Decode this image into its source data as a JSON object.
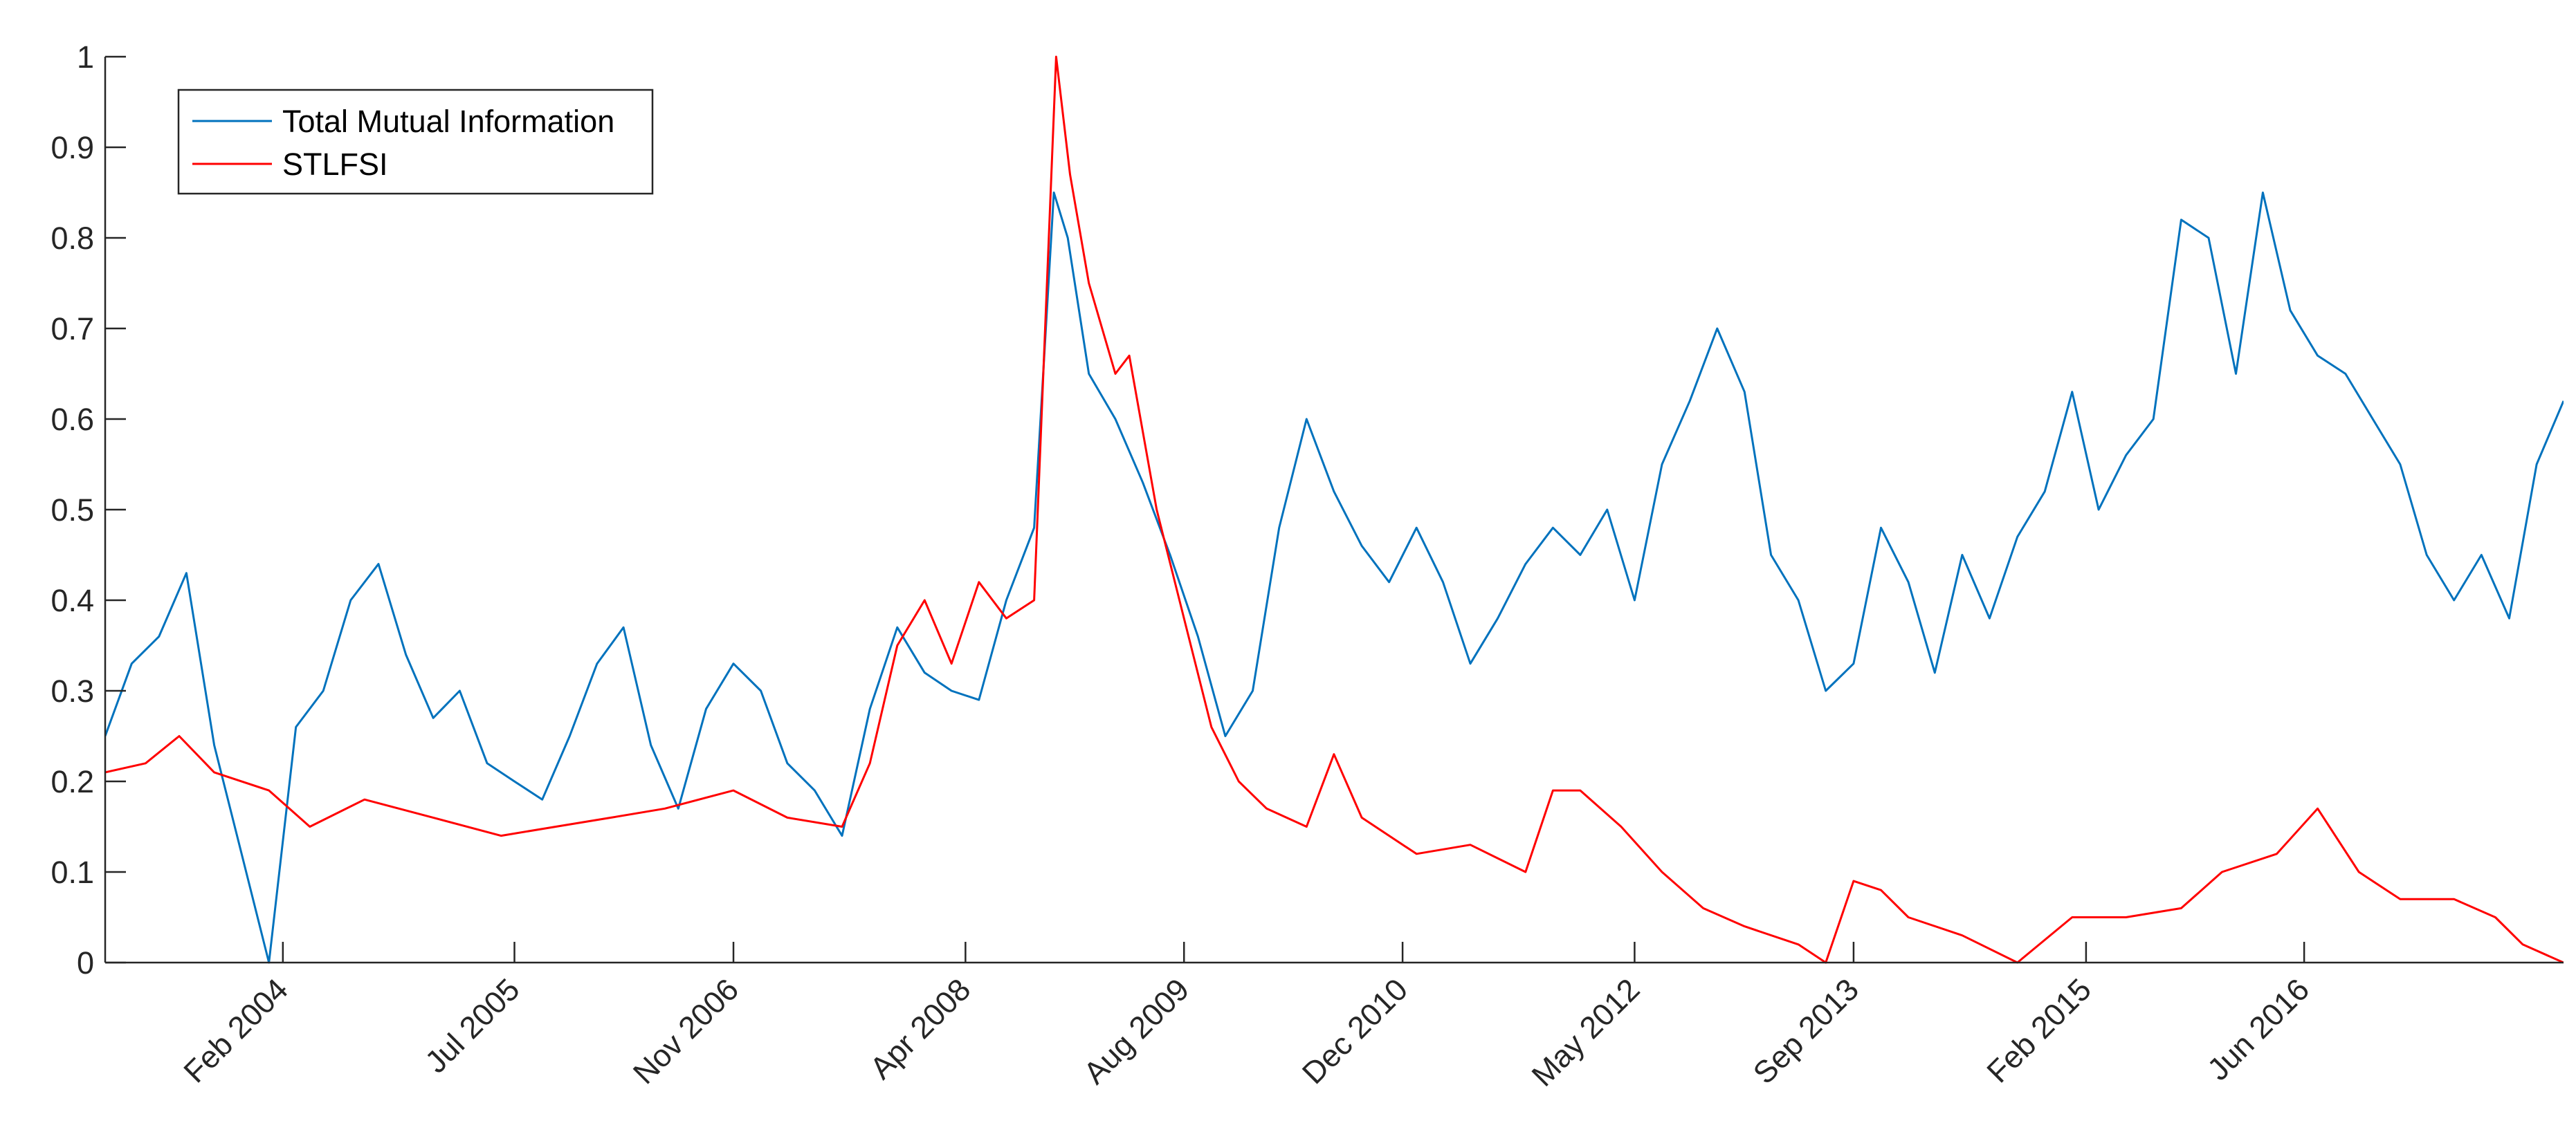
{
  "chart_data": {
    "type": "line",
    "x_axis": {
      "type": "date",
      "range": [
        "2003-01-01",
        "2017-12-31"
      ],
      "tick_dates": [
        "2004-02-01",
        "2005-07-01",
        "2006-11-01",
        "2008-04-01",
        "2009-08-01",
        "2010-12-01",
        "2012-05-01",
        "2013-09-01",
        "2015-02-01",
        "2016-06-01"
      ],
      "tick_labels": [
        "Feb 2004",
        "Jul 2005",
        "Nov 2006",
        "Apr 2008",
        "Aug 2009",
        "Dec 2010",
        "May 2012",
        "Sep 2013",
        "Feb 2015",
        "Jun 2016"
      ]
    },
    "y_axis": {
      "range": [
        0,
        1
      ],
      "ticks": [
        0,
        0.1,
        0.2,
        0.3,
        0.4,
        0.5,
        0.6,
        0.7,
        0.8,
        0.9,
        1
      ],
      "tick_labels": [
        "0",
        "0.1",
        "0.2",
        "0.3",
        "0.4",
        "0.5",
        "0.6",
        "0.7",
        "0.8",
        "0.9",
        "1"
      ]
    },
    "grid": false,
    "legend": {
      "placement": "top-left"
    },
    "series": [
      {
        "name": "Total Mutual Information",
        "color": "#0072BD",
        "points": [
          [
            "2003-01-01",
            0.25
          ],
          [
            "2003-03-01",
            0.33
          ],
          [
            "2003-05-01",
            0.36
          ],
          [
            "2003-07-01",
            0.43
          ],
          [
            "2003-09-01",
            0.24
          ],
          [
            "2003-11-01",
            0.12
          ],
          [
            "2004-01-01",
            0.0
          ],
          [
            "2004-03-01",
            0.26
          ],
          [
            "2004-05-01",
            0.3
          ],
          [
            "2004-07-01",
            0.4
          ],
          [
            "2004-09-01",
            0.44
          ],
          [
            "2004-11-01",
            0.34
          ],
          [
            "2005-01-01",
            0.27
          ],
          [
            "2005-03-01",
            0.3
          ],
          [
            "2005-05-01",
            0.22
          ],
          [
            "2005-07-01",
            0.2
          ],
          [
            "2005-09-01",
            0.18
          ],
          [
            "2005-11-01",
            0.25
          ],
          [
            "2006-01-01",
            0.33
          ],
          [
            "2006-03-01",
            0.37
          ],
          [
            "2006-05-01",
            0.24
          ],
          [
            "2006-07-01",
            0.17
          ],
          [
            "2006-09-01",
            0.28
          ],
          [
            "2006-11-01",
            0.33
          ],
          [
            "2007-01-01",
            0.3
          ],
          [
            "2007-03-01",
            0.22
          ],
          [
            "2007-05-01",
            0.19
          ],
          [
            "2007-07-01",
            0.14
          ],
          [
            "2007-09-01",
            0.28
          ],
          [
            "2007-11-01",
            0.37
          ],
          [
            "2008-01-01",
            0.32
          ],
          [
            "2008-03-01",
            0.3
          ],
          [
            "2008-05-01",
            0.29
          ],
          [
            "2008-07-01",
            0.4
          ],
          [
            "2008-09-01",
            0.48
          ],
          [
            "2008-10-15",
            0.85
          ],
          [
            "2008-11-15",
            0.8
          ],
          [
            "2009-01-01",
            0.65
          ],
          [
            "2009-03-01",
            0.6
          ],
          [
            "2009-05-01",
            0.53
          ],
          [
            "2009-07-01",
            0.45
          ],
          [
            "2009-09-01",
            0.36
          ],
          [
            "2009-11-01",
            0.25
          ],
          [
            "2010-01-01",
            0.3
          ],
          [
            "2010-03-01",
            0.48
          ],
          [
            "2010-05-01",
            0.6
          ],
          [
            "2010-07-01",
            0.52
          ],
          [
            "2010-09-01",
            0.46
          ],
          [
            "2010-11-01",
            0.42
          ],
          [
            "2011-01-01",
            0.48
          ],
          [
            "2011-03-01",
            0.42
          ],
          [
            "2011-05-01",
            0.33
          ],
          [
            "2011-07-01",
            0.38
          ],
          [
            "2011-09-01",
            0.44
          ],
          [
            "2011-11-01",
            0.48
          ],
          [
            "2012-01-01",
            0.45
          ],
          [
            "2012-03-01",
            0.5
          ],
          [
            "2012-05-01",
            0.4
          ],
          [
            "2012-07-01",
            0.55
          ],
          [
            "2012-09-01",
            0.62
          ],
          [
            "2012-11-01",
            0.7
          ],
          [
            "2013-01-01",
            0.63
          ],
          [
            "2013-03-01",
            0.45
          ],
          [
            "2013-05-01",
            0.4
          ],
          [
            "2013-07-01",
            0.3
          ],
          [
            "2013-09-01",
            0.33
          ],
          [
            "2013-11-01",
            0.48
          ],
          [
            "2014-01-01",
            0.42
          ],
          [
            "2014-03-01",
            0.32
          ],
          [
            "2014-05-01",
            0.45
          ],
          [
            "2014-07-01",
            0.38
          ],
          [
            "2014-09-01",
            0.47
          ],
          [
            "2014-11-01",
            0.52
          ],
          [
            "2015-01-01",
            0.63
          ],
          [
            "2015-03-01",
            0.5
          ],
          [
            "2015-05-01",
            0.56
          ],
          [
            "2015-07-01",
            0.6
          ],
          [
            "2015-09-01",
            0.82
          ],
          [
            "2015-11-01",
            0.8
          ],
          [
            "2016-01-01",
            0.65
          ],
          [
            "2016-03-01",
            0.85
          ],
          [
            "2016-05-01",
            0.72
          ],
          [
            "2016-07-01",
            0.67
          ],
          [
            "2016-09-01",
            0.65
          ],
          [
            "2016-11-01",
            0.6
          ],
          [
            "2017-01-01",
            0.55
          ],
          [
            "2017-03-01",
            0.45
          ],
          [
            "2017-05-01",
            0.4
          ],
          [
            "2017-07-01",
            0.45
          ],
          [
            "2017-09-01",
            0.38
          ],
          [
            "2017-11-01",
            0.55
          ],
          [
            "2017-12-31",
            0.62
          ]
        ]
      },
      {
        "name": "STLFSI",
        "color": "#FF0000",
        "points": [
          [
            "2003-01-01",
            0.21
          ],
          [
            "2003-04-01",
            0.22
          ],
          [
            "2003-06-15",
            0.25
          ],
          [
            "2003-09-01",
            0.21
          ],
          [
            "2004-01-01",
            0.19
          ],
          [
            "2004-04-01",
            0.15
          ],
          [
            "2004-08-01",
            0.18
          ],
          [
            "2005-01-01",
            0.16
          ],
          [
            "2005-06-01",
            0.14
          ],
          [
            "2005-10-01",
            0.15
          ],
          [
            "2006-02-01",
            0.16
          ],
          [
            "2006-06-01",
            0.17
          ],
          [
            "2006-11-01",
            0.19
          ],
          [
            "2007-03-01",
            0.16
          ],
          [
            "2007-07-01",
            0.15
          ],
          [
            "2007-09-01",
            0.22
          ],
          [
            "2007-11-01",
            0.35
          ],
          [
            "2008-01-01",
            0.4
          ],
          [
            "2008-03-01",
            0.33
          ],
          [
            "2008-05-01",
            0.42
          ],
          [
            "2008-07-01",
            0.38
          ],
          [
            "2008-09-01",
            0.4
          ],
          [
            "2008-10-20",
            1.0
          ],
          [
            "2008-11-20",
            0.87
          ],
          [
            "2009-01-01",
            0.75
          ],
          [
            "2009-03-01",
            0.65
          ],
          [
            "2009-04-01",
            0.67
          ],
          [
            "2009-06-01",
            0.5
          ],
          [
            "2009-08-01",
            0.38
          ],
          [
            "2009-10-01",
            0.26
          ],
          [
            "2009-12-01",
            0.2
          ],
          [
            "2010-02-01",
            0.17
          ],
          [
            "2010-05-01",
            0.15
          ],
          [
            "2010-07-01",
            0.23
          ],
          [
            "2010-09-01",
            0.16
          ],
          [
            "2011-01-01",
            0.12
          ],
          [
            "2011-05-01",
            0.13
          ],
          [
            "2011-09-01",
            0.1
          ],
          [
            "2011-11-01",
            0.19
          ],
          [
            "2012-01-01",
            0.19
          ],
          [
            "2012-04-01",
            0.15
          ],
          [
            "2012-07-01",
            0.1
          ],
          [
            "2012-10-01",
            0.06
          ],
          [
            "2013-01-01",
            0.04
          ],
          [
            "2013-05-01",
            0.02
          ],
          [
            "2013-07-01",
            0.0
          ],
          [
            "2013-09-01",
            0.09
          ],
          [
            "2013-11-01",
            0.08
          ],
          [
            "2014-01-01",
            0.05
          ],
          [
            "2014-05-01",
            0.03
          ],
          [
            "2014-09-01",
            0.0
          ],
          [
            "2015-01-01",
            0.05
          ],
          [
            "2015-05-01",
            0.05
          ],
          [
            "2015-09-01",
            0.06
          ],
          [
            "2015-12-01",
            0.1
          ],
          [
            "2016-04-01",
            0.12
          ],
          [
            "2016-07-01",
            0.17
          ],
          [
            "2016-10-01",
            0.1
          ],
          [
            "2017-01-01",
            0.07
          ],
          [
            "2017-05-01",
            0.07
          ],
          [
            "2017-08-01",
            0.05
          ],
          [
            "2017-10-01",
            0.02
          ],
          [
            "2017-12-31",
            0.0
          ]
        ]
      }
    ]
  }
}
